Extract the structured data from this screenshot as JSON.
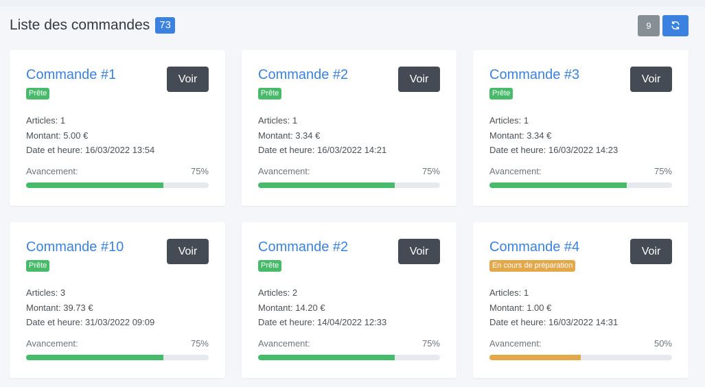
{
  "header": {
    "title": "Liste des commandes",
    "total_count": "73",
    "page_count": "9",
    "refresh_icon": "refresh-icon"
  },
  "colors": {
    "accent": "#3b82e0",
    "ready": "#48bb6a",
    "in_progress": "#e3a84a",
    "button_dark": "#454b55"
  },
  "labels": {
    "view": "Voir",
    "articles": "Articles:",
    "amount": "Montant:",
    "datetime": "Date et heure:",
    "progress": "Avancement:"
  },
  "orders": [
    {
      "title": "Commande #1",
      "status": "Prête",
      "status_type": "ready",
      "articles": "1",
      "amount": "5.00 €",
      "datetime": "16/03/2022 13:54",
      "progress": 75,
      "progress_label": "75%"
    },
    {
      "title": "Commande #2",
      "status": "Prête",
      "status_type": "ready",
      "articles": "1",
      "amount": "3.34 €",
      "datetime": "16/03/2022 14:21",
      "progress": 75,
      "progress_label": "75%"
    },
    {
      "title": "Commande #3",
      "status": "Prête",
      "status_type": "ready",
      "articles": "1",
      "amount": "3.34 €",
      "datetime": "16/03/2022 14:23",
      "progress": 75,
      "progress_label": "75%"
    },
    {
      "title": "Commande #10",
      "status": "Prête",
      "status_type": "ready",
      "articles": "3",
      "amount": "39.73 €",
      "datetime": "31/03/2022 09:09",
      "progress": 75,
      "progress_label": "75%"
    },
    {
      "title": "Commande #2",
      "status": "Prête",
      "status_type": "ready",
      "articles": "2",
      "amount": "14.20 €",
      "datetime": "14/04/2022 12:33",
      "progress": 75,
      "progress_label": "75%"
    },
    {
      "title": "Commande #4",
      "status": "En cours de préparation",
      "status_type": "in_progress",
      "articles": "1",
      "amount": "1.00 €",
      "datetime": "16/03/2022 14:31",
      "progress": 50,
      "progress_label": "50%"
    }
  ]
}
